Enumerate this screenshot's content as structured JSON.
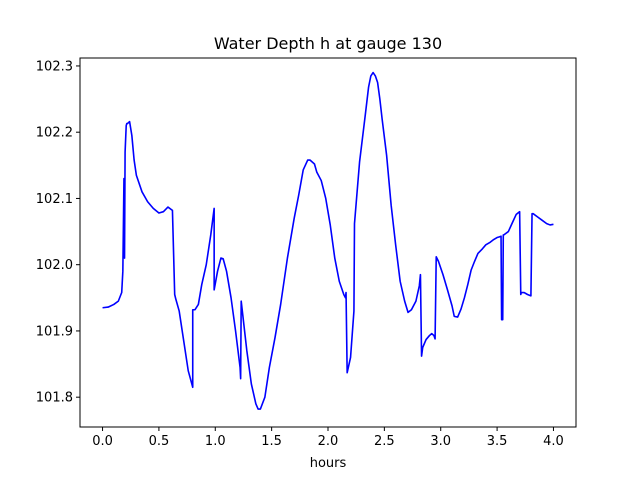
{
  "chart_data": {
    "type": "line",
    "title": "Water Depth h at gauge 130",
    "xlabel": "hours",
    "ylabel": "",
    "xlim": [
      -0.2,
      4.2
    ],
    "ylim": [
      101.755,
      102.312
    ],
    "xticks": [
      0.0,
      0.5,
      1.0,
      1.5,
      2.0,
      2.5,
      3.0,
      3.5,
      4.0
    ],
    "xtick_labels": [
      "0.0",
      "0.5",
      "1.0",
      "1.5",
      "2.0",
      "2.5",
      "3.0",
      "3.5",
      "4.0"
    ],
    "yticks": [
      101.8,
      101.9,
      102.0,
      102.1,
      102.2,
      102.3
    ],
    "ytick_labels": [
      "101.8",
      "101.9",
      "102.0",
      "102.1",
      "102.2",
      "102.3"
    ],
    "grid": false,
    "series": [
      {
        "color": "#0000ff",
        "x": [
          0.0,
          0.05,
          0.1,
          0.14,
          0.17,
          0.18,
          0.19,
          0.195,
          0.2,
          0.205,
          0.21,
          0.215,
          0.22,
          0.24,
          0.26,
          0.28,
          0.3,
          0.35,
          0.4,
          0.45,
          0.5,
          0.54,
          0.58,
          0.62,
          0.64,
          0.65,
          0.68,
          0.72,
          0.76,
          0.8,
          0.8,
          0.82,
          0.85,
          0.88,
          0.92,
          0.96,
          0.99,
          0.99,
          1.02,
          1.05,
          1.07,
          1.1,
          1.14,
          1.18,
          1.22,
          1.225,
          1.23,
          1.28,
          1.32,
          1.36,
          1.38,
          1.4,
          1.44,
          1.48,
          1.53,
          1.58,
          1.64,
          1.7,
          1.74,
          1.78,
          1.82,
          1.84,
          1.86,
          1.88,
          1.9,
          1.94,
          1.98,
          2.02,
          2.06,
          2.1,
          2.14,
          2.155,
          2.16,
          2.17,
          2.2,
          2.23,
          2.235,
          2.28,
          2.33,
          2.36,
          2.38,
          2.4,
          2.42,
          2.44,
          2.46,
          2.48,
          2.52,
          2.56,
          2.6,
          2.64,
          2.68,
          2.71,
          2.74,
          2.78,
          2.81,
          2.82,
          2.83,
          2.84,
          2.87,
          2.9,
          2.92,
          2.94,
          2.95,
          2.96,
          2.98,
          3.02,
          3.06,
          3.1,
          3.12,
          3.15,
          3.18,
          3.21,
          3.24,
          3.27,
          3.3,
          3.33,
          3.37,
          3.4,
          3.44,
          3.47,
          3.5,
          3.52,
          3.535,
          3.54,
          3.55,
          3.555,
          3.56,
          3.6,
          3.64,
          3.67,
          3.7,
          3.71,
          3.715,
          3.74,
          3.77,
          3.8,
          3.81,
          3.82,
          3.86,
          3.9,
          3.94,
          3.97,
          4.0
        ],
        "values": [
          101.935,
          101.936,
          101.94,
          101.945,
          101.958,
          101.99,
          102.13,
          102.01,
          102.17,
          102.19,
          102.21,
          102.213,
          102.213,
          102.216,
          102.195,
          102.158,
          102.135,
          102.11,
          102.095,
          102.085,
          102.078,
          102.08,
          102.087,
          102.082,
          101.955,
          101.948,
          101.93,
          101.885,
          101.84,
          101.815,
          101.932,
          101.932,
          101.94,
          101.97,
          102.0,
          102.045,
          102.085,
          101.962,
          101.99,
          102.01,
          102.009,
          101.99,
          101.95,
          101.9,
          101.845,
          101.828,
          101.945,
          101.87,
          101.82,
          101.79,
          101.782,
          101.782,
          101.8,
          101.845,
          101.89,
          101.94,
          102.01,
          102.07,
          102.105,
          102.143,
          102.158,
          102.158,
          102.155,
          102.152,
          102.14,
          102.127,
          102.1,
          102.06,
          102.01,
          101.975,
          101.955,
          101.95,
          101.958,
          101.837,
          101.86,
          101.93,
          102.062,
          102.155,
          102.225,
          102.268,
          102.285,
          102.29,
          102.285,
          102.275,
          102.25,
          102.22,
          102.165,
          102.09,
          102.03,
          101.975,
          101.945,
          101.928,
          101.932,
          101.945,
          101.968,
          101.985,
          101.862,
          101.875,
          101.887,
          101.893,
          101.896,
          101.893,
          101.888,
          102.012,
          102.005,
          101.985,
          101.962,
          101.938,
          101.922,
          101.921,
          101.933,
          101.95,
          101.97,
          101.992,
          102.005,
          102.017,
          102.024,
          102.03,
          102.034,
          102.038,
          102.041,
          102.042,
          102.043,
          101.917,
          101.917,
          102.045,
          102.045,
          102.05,
          102.065,
          102.076,
          102.08,
          101.955,
          101.958,
          101.958,
          101.955,
          101.953,
          102.077,
          102.077,
          102.072,
          102.067,
          102.062,
          102.06,
          102.061
        ]
      }
    ]
  }
}
